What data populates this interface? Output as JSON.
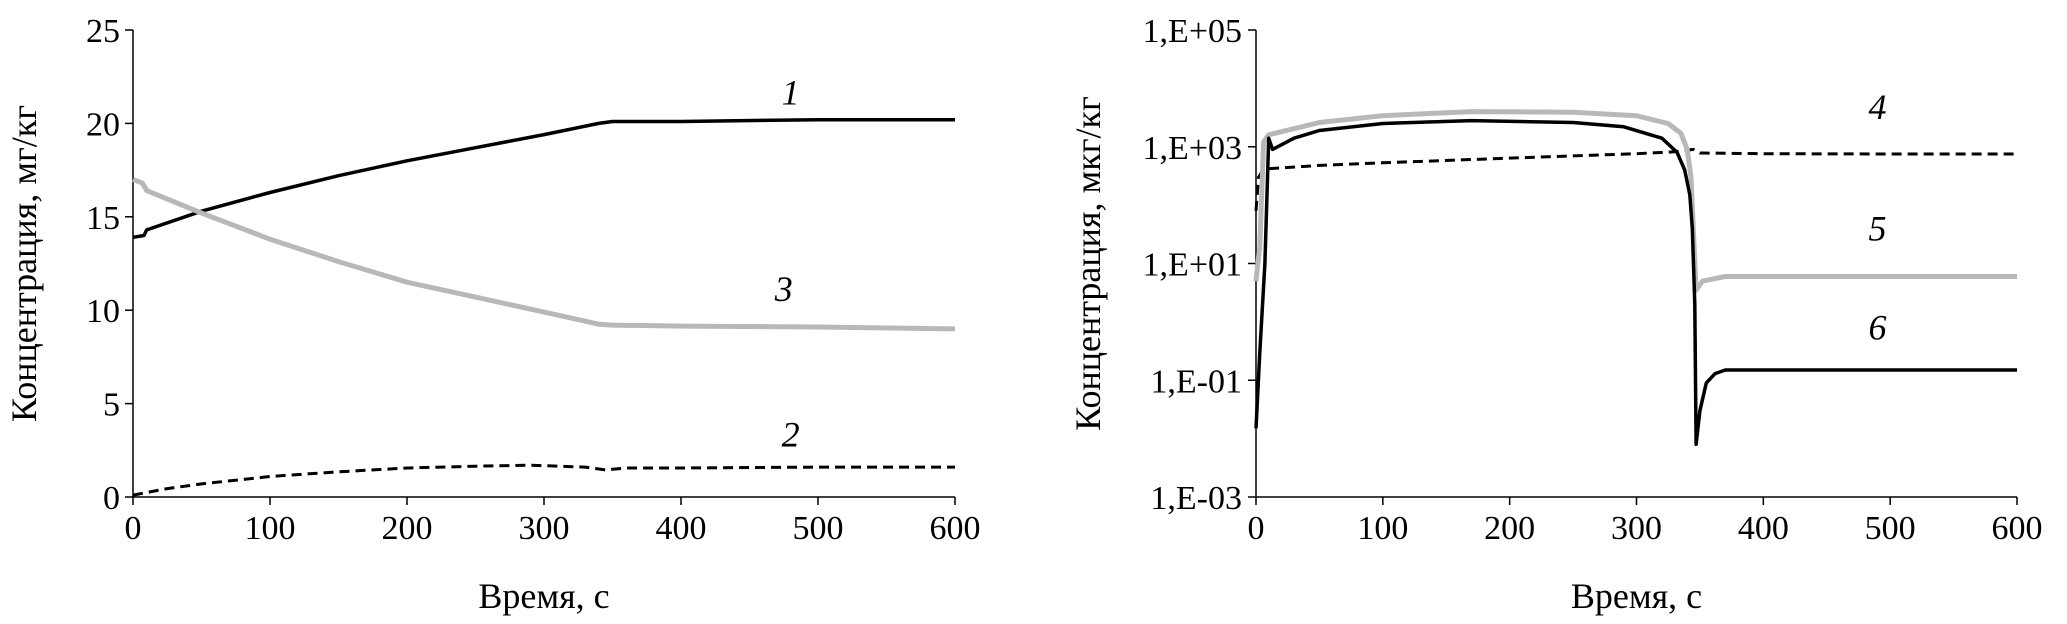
{
  "chart_data": [
    {
      "type": "line",
      "xlabel": "Время, с",
      "ylabel": "Концентрация, мг/кг",
      "xlim": [
        0,
        600
      ],
      "ylim": [
        0,
        25
      ],
      "xticks": [
        0,
        100,
        200,
        300,
        400,
        500,
        600
      ],
      "xtick_labels": [
        "0",
        "100",
        "200",
        "300",
        "400",
        "500",
        "600"
      ],
      "yticks": [
        0,
        5,
        10,
        15,
        20,
        25
      ],
      "ytick_labels": [
        "0",
        "5",
        "10",
        "15",
        "20",
        "25"
      ],
      "grid": false,
      "scale": "linear",
      "series": [
        {
          "name": "1",
          "color": "#000000",
          "style": "solid",
          "label_at": [
            480,
            21.0
          ],
          "x": [
            0,
            8,
            10,
            50,
            100,
            150,
            200,
            250,
            300,
            340,
            350,
            400,
            500,
            600
          ],
          "y": [
            13.9,
            14.0,
            14.3,
            15.3,
            16.3,
            17.2,
            18.0,
            18.7,
            19.4,
            20.0,
            20.1,
            20.1,
            20.2,
            20.2
          ]
        },
        {
          "name": "2",
          "color": "#000000",
          "style": "dashed",
          "label_at": [
            480,
            2.7
          ],
          "x": [
            0,
            25,
            50,
            100,
            150,
            200,
            250,
            290,
            330,
            345,
            360,
            400,
            500,
            600
          ],
          "y": [
            0.1,
            0.45,
            0.7,
            1.1,
            1.35,
            1.55,
            1.65,
            1.7,
            1.6,
            1.45,
            1.55,
            1.55,
            1.6,
            1.6
          ]
        },
        {
          "name": "3",
          "color": "#b8b8b8",
          "style": "solid",
          "label_at": [
            475,
            10.5
          ],
          "x": [
            0,
            7,
            10,
            50,
            100,
            150,
            200,
            250,
            300,
            340,
            350,
            400,
            500,
            600
          ],
          "y": [
            17.0,
            16.8,
            16.4,
            15.2,
            13.8,
            12.6,
            11.5,
            10.7,
            9.9,
            9.25,
            9.2,
            9.15,
            9.1,
            9.0
          ]
        }
      ]
    },
    {
      "type": "line",
      "xlabel": "Время, с",
      "ylabel": "Концентрация, мкг/кг",
      "xlim": [
        0,
        600
      ],
      "ylim": [
        0.001,
        100000
      ],
      "scale": "log",
      "xticks": [
        0,
        100,
        200,
        300,
        400,
        500,
        600
      ],
      "xtick_labels": [
        "0",
        "100",
        "200",
        "300",
        "400",
        "500",
        "600"
      ],
      "yticks": [
        0.001,
        0.1,
        10,
        1000,
        100000
      ],
      "ytick_labels": [
        "1,E-03",
        "1,E-01",
        "1,E+01",
        "1,E+03",
        "1,E+05"
      ],
      "grid": false,
      "series": [
        {
          "name": "4",
          "color": "#000000",
          "style": "dashed",
          "label_at": [
            490,
            3000
          ],
          "x": [
            0,
            2,
            5,
            10,
            50,
            100,
            200,
            300,
            330,
            345,
            350,
            400,
            500,
            600
          ],
          "y": [
            80,
            300,
            380,
            420,
            480,
            530,
            640,
            760,
            820,
            900,
            780,
            760,
            750,
            750
          ]
        },
        {
          "name": "5",
          "color": "#b8b8b8",
          "style": "solid",
          "label_at": [
            490,
            25
          ],
          "x": [
            0,
            3,
            6,
            10,
            50,
            100,
            170,
            250,
            300,
            325,
            335,
            340,
            343,
            345,
            347,
            352,
            370,
            400,
            600
          ],
          "y": [
            5,
            20,
            1200,
            1600,
            2600,
            3400,
            4000,
            3900,
            3400,
            2500,
            1700,
            900,
            300,
            30,
            3.5,
            5,
            6,
            6,
            6
          ]
        },
        {
          "name": "6",
          "color": "#000000",
          "style": "solid",
          "label_at": [
            490,
            0.5
          ],
          "x": [
            0,
            3,
            7,
            10,
            13,
            30,
            50,
            100,
            170,
            250,
            290,
            320,
            332,
            338,
            342,
            344,
            346,
            347,
            350,
            355,
            362,
            370,
            400,
            600
          ],
          "y": [
            0.015,
            0.3,
            10,
            1400,
            900,
            1400,
            1900,
            2500,
            2800,
            2600,
            2200,
            1400,
            800,
            400,
            150,
            40,
            2,
            0.008,
            0.03,
            0.09,
            0.13,
            0.15,
            0.15,
            0.15
          ]
        }
      ]
    }
  ]
}
